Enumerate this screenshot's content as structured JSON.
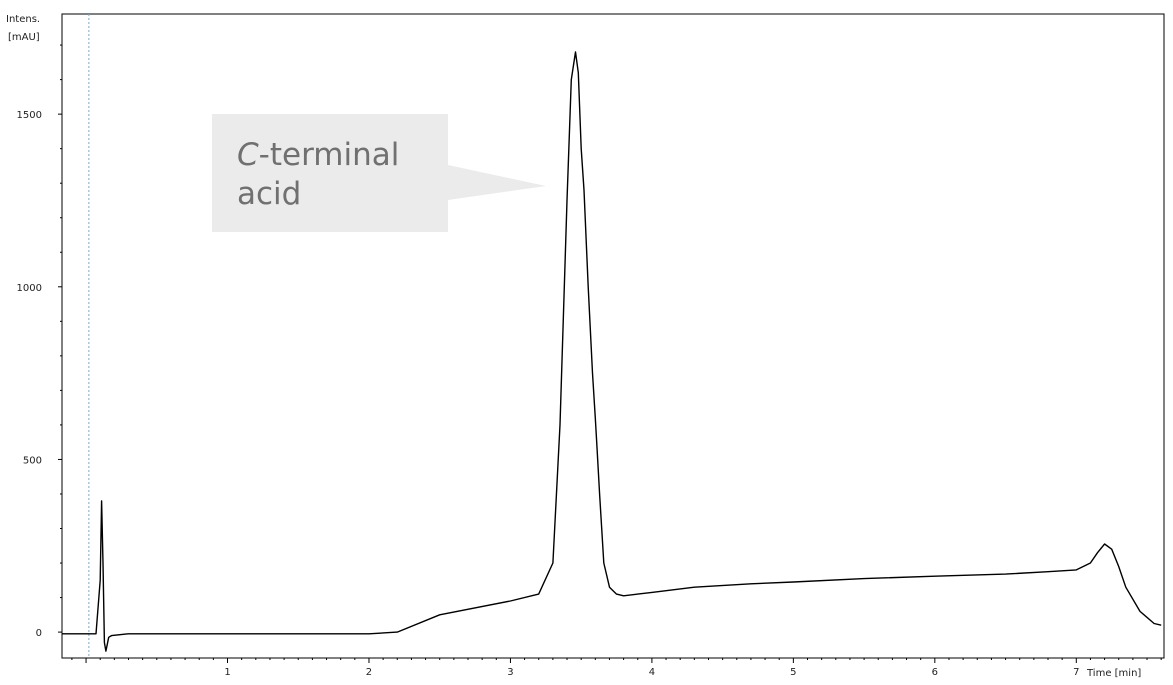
{
  "chart_data": {
    "type": "line",
    "y_label_line1": "Intens.",
    "y_label_line2": "[mAU]",
    "x_label": "Time [min]",
    "xlim": [
      -0.17,
      7.62
    ],
    "ylim": [
      -75,
      1790
    ],
    "x_ticks": [
      1,
      2,
      3,
      4,
      5,
      6,
      7
    ],
    "x_tick_labels": [
      "1",
      "2",
      "3",
      "4",
      "5",
      "6",
      "7"
    ],
    "y_ticks": [
      0,
      500,
      1000,
      1500
    ],
    "y_tick_labels": [
      "0",
      "500",
      "1000",
      "1500"
    ],
    "injection_marker_x": 0.02,
    "series": [
      {
        "color": "#000000",
        "x": [
          -0.17,
          0.02,
          0.07,
          0.1,
          0.11,
          0.12,
          0.13,
          0.14,
          0.16,
          0.18,
          0.3,
          1.0,
          2.0,
          2.2,
          2.5,
          3.0,
          3.2,
          3.3,
          3.35,
          3.4,
          3.43,
          3.46,
          3.48,
          3.5,
          3.52,
          3.55,
          3.58,
          3.6,
          3.61,
          3.63,
          3.66,
          3.7,
          3.75,
          3.8,
          3.9,
          4.0,
          4.3,
          4.7,
          5.0,
          5.5,
          6.0,
          6.5,
          6.8,
          7.0,
          7.1,
          7.15,
          7.2,
          7.25,
          7.3,
          7.35,
          7.45,
          7.55,
          7.6
        ],
        "y": [
          -5,
          -5,
          -5,
          150,
          380,
          200,
          -30,
          -55,
          -15,
          -10,
          -5,
          -5,
          -5,
          0,
          50,
          90,
          110,
          200,
          600,
          1250,
          1600,
          1680,
          1620,
          1400,
          1280,
          1000,
          750,
          620,
          550,
          400,
          200,
          130,
          110,
          105,
          110,
          115,
          130,
          140,
          145,
          155,
          162,
          168,
          175,
          180,
          200,
          230,
          255,
          240,
          190,
          130,
          60,
          25,
          20
        ]
      }
    ],
    "annotation": {
      "text_italic": "C",
      "text_line1": "-terminal",
      "text_line2": "acid",
      "box_color": "#ebebeb",
      "text_color": "#707070"
    }
  }
}
